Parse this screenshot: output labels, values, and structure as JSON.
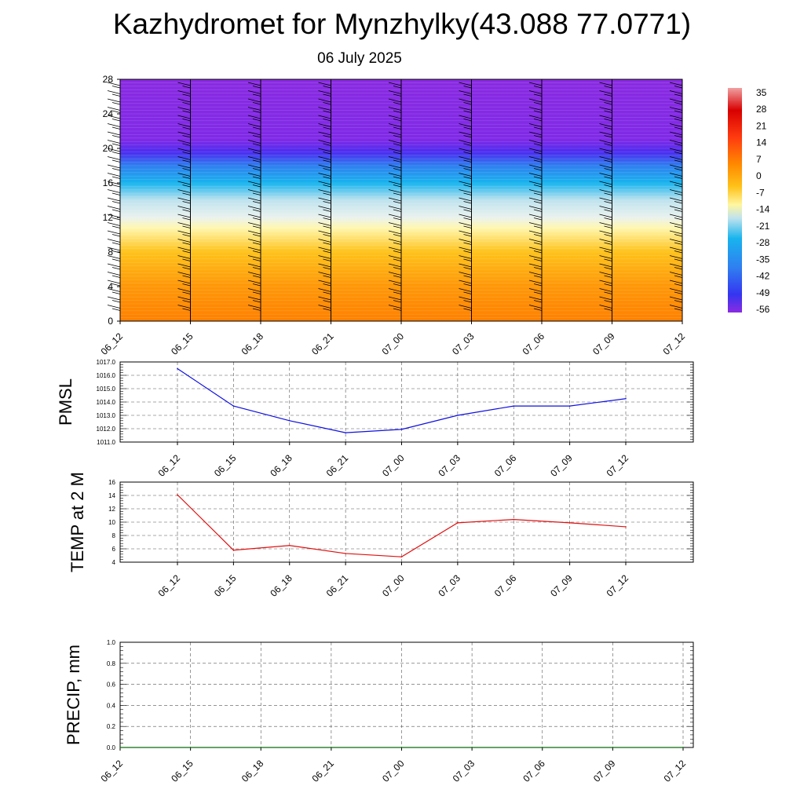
{
  "title": "Kazhydromet for Mynzhylky(43.088 77.0771)",
  "subtitle": "06 July 2025",
  "colorbar": {
    "labels": [
      "35",
      "28",
      "21",
      "14",
      "7",
      "0",
      "-7",
      "-14",
      "-21",
      "-28",
      "-35",
      "-42",
      "-49",
      "-56"
    ]
  },
  "chart_data": [
    {
      "type": "heatmap",
      "name": "temperature cross-section",
      "x": [
        "06_12",
        "06_15",
        "06_18",
        "06_21",
        "07_00",
        "07_03",
        "07_06",
        "07_09",
        "07_12"
      ],
      "y_ticks": [
        0,
        4,
        8,
        12,
        16,
        20,
        24,
        28
      ],
      "ylim": [
        0,
        28
      ],
      "colorbar_range": [
        -56,
        35
      ],
      "levels_temperature": [
        {
          "y": 0,
          "value": 14
        },
        {
          "y": 4,
          "value": 10
        },
        {
          "y": 8,
          "value": 3
        },
        {
          "y": 10.8,
          "value": -7
        },
        {
          "y": 12,
          "value": -14
        },
        {
          "y": 14,
          "value": -24
        },
        {
          "y": 16,
          "value": -33
        },
        {
          "y": 18,
          "value": -42
        },
        {
          "y": 19.5,
          "value": -52
        },
        {
          "y": 21,
          "value": -57
        },
        {
          "y": 28,
          "value": -58
        }
      ],
      "wind_barbs": true
    },
    {
      "type": "line",
      "ylabel": "PMSL",
      "x": [
        "06_12",
        "06_15",
        "06_18",
        "06_21",
        "07_00",
        "07_03",
        "07_06",
        "07_09",
        "07_12"
      ],
      "values": [
        1016.5,
        1013.7,
        1012.6,
        1011.7,
        1011.95,
        1013.0,
        1013.7,
        1013.7,
        1014.25
      ],
      "ylim": [
        1011.0,
        1017.0
      ],
      "y_ticks": [
        "1011.0",
        "1012.0",
        "1013.0",
        "1014.0",
        "1015.0",
        "1016.0",
        "1017.0"
      ],
      "color": "#1010e0",
      "grid": true
    },
    {
      "type": "line",
      "ylabel": "TEMP at 2 M",
      "x": [
        "06_12",
        "06_15",
        "06_18",
        "06_21",
        "07_00",
        "07_03",
        "07_06",
        "07_09",
        "07_12"
      ],
      "values": [
        14.1,
        5.8,
        6.5,
        5.3,
        4.8,
        9.9,
        10.4,
        9.9,
        9.3
      ],
      "ylim": [
        4,
        16
      ],
      "y_ticks": [
        "4",
        "6",
        "8",
        "10",
        "12",
        "14",
        "16"
      ],
      "color": "#e01010",
      "grid": true
    },
    {
      "type": "line",
      "ylabel": "PRECIP, mm",
      "x": [
        "06_12",
        "06_15",
        "06_18",
        "06_21",
        "07_00",
        "07_03",
        "07_06",
        "07_09",
        "07_12"
      ],
      "values": [
        0,
        0,
        0,
        0,
        0,
        0,
        0,
        0,
        0
      ],
      "ylim": [
        0.0,
        1.0
      ],
      "y_ticks": [
        "0.0",
        "0.2",
        "0.4",
        "0.6",
        "0.8",
        "1.0"
      ],
      "color": "#0a6a0a",
      "grid": true
    }
  ]
}
